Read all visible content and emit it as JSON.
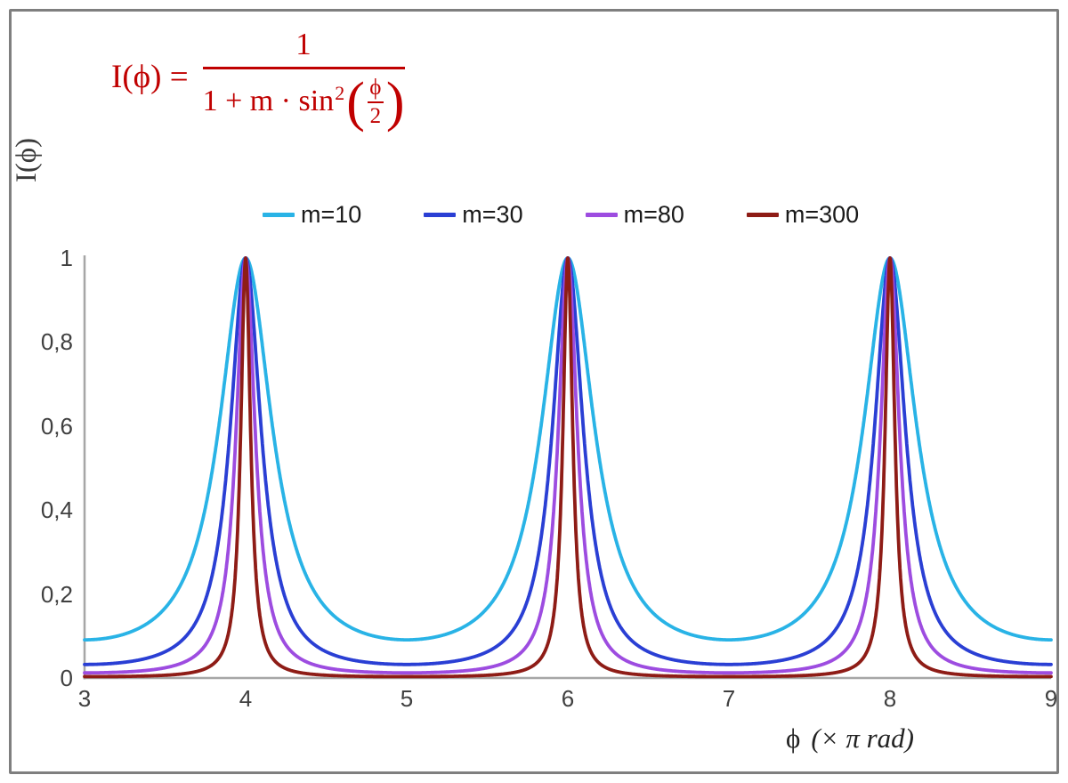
{
  "formula": {
    "lhs": "I(ϕ) =",
    "numerator": "1",
    "denominator_prefix": "1 + m · sin",
    "denominator_exp": "2",
    "open_paren": "(",
    "inner_num": "ϕ",
    "inner_den": "2",
    "close_paren": ")"
  },
  "axes": {
    "y_title": "I(ϕ)",
    "x_title_symbol": "ϕ",
    "x_title_unit": "(× π rad)",
    "x_ticks": [
      "3",
      "4",
      "5",
      "6",
      "7",
      "8",
      "9"
    ],
    "y_ticks": [
      "0",
      "0,2",
      "0,4",
      "0,6",
      "0,8",
      "1"
    ]
  },
  "chart_data": {
    "type": "line",
    "title": "I(ϕ) = 1 / (1 + m · sin²(ϕ/2))",
    "xlabel": "ϕ (× π rad)",
    "ylabel": "I(ϕ)",
    "x_range": [
      3,
      9
    ],
    "y_range": [
      0,
      1
    ],
    "x_tick_values": [
      3,
      4,
      5,
      6,
      7,
      8,
      9
    ],
    "y_tick_values": [
      0,
      0.2,
      0.4,
      0.6,
      0.8,
      1
    ],
    "function": "I(x) = 1 / (1 + m * sin^2(pi * x / 2)), x in units of pi rad",
    "series": [
      {
        "name": "m=10",
        "m": 10,
        "color": "#29b3e6"
      },
      {
        "name": "m=30",
        "m": 30,
        "color": "#2a3fd4"
      },
      {
        "name": "m=80",
        "m": 80,
        "color": "#9d4ce0"
      },
      {
        "name": "m=300",
        "m": 300,
        "color": "#8e1c16"
      }
    ],
    "peaks_x": [
      4,
      6,
      8
    ],
    "peak_value": 1,
    "minima_values": {
      "m=10": 0.091,
      "m=30": 0.032,
      "m=80": 0.012,
      "m=300": 0.003
    },
    "legend_position": "top-center",
    "grid": false
  },
  "colors": {
    "formula": "#c00000",
    "axis_line": "#a6a6a6",
    "border": "#7f7f7f",
    "tick_text": "#404040",
    "legend_text": "#1a1a1a"
  }
}
